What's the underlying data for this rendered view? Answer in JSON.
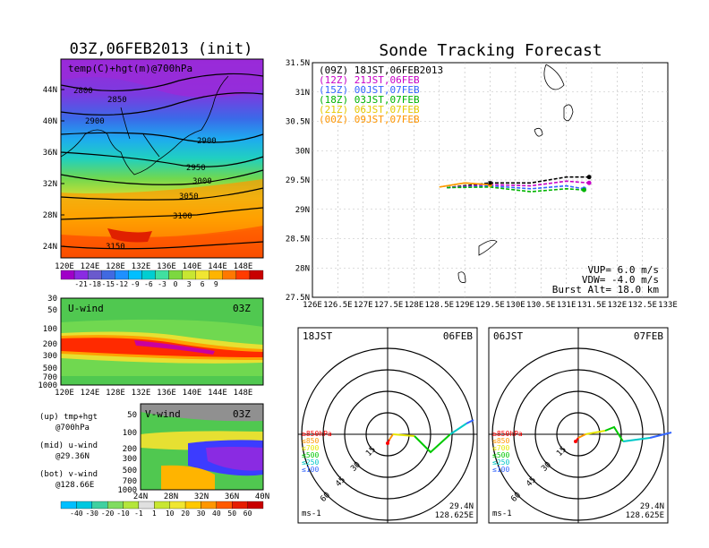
{
  "left_top": {
    "title": "03Z,06FEB2013 (init)",
    "label": "temp(C)+hgt(m)@700hPa",
    "lat_ticks": [
      "44N",
      "40N",
      "36N",
      "32N",
      "28N",
      "24N"
    ],
    "lon_ticks": [
      "120E",
      "124E",
      "128E",
      "132E",
      "136E",
      "140E",
      "144E",
      "148E"
    ],
    "contour_labels": [
      "2800",
      "2850",
      "2900",
      "2900",
      "2950",
      "3000",
      "3050",
      "3100",
      "3150"
    ],
    "colorbar_labels": [
      "-21",
      "-18",
      "-15",
      "-12",
      "-9",
      "-6",
      "-3",
      "0",
      "3",
      "6",
      "9"
    ],
    "colorbar_colors": [
      "#a000c8",
      "#8a2be2",
      "#6a5acd",
      "#4169e1",
      "#1e90ff",
      "#00bfff",
      "#00ced1",
      "#40e0a0",
      "#7cd840",
      "#c8e632",
      "#f0e632",
      "#ffb400",
      "#ff7800",
      "#ff3c00",
      "#c80000"
    ]
  },
  "u_wind": {
    "label": "U-wind",
    "time": "03Z",
    "p_ticks": [
      "30",
      "50",
      "100",
      "200",
      "300",
      "500",
      "700",
      "1000"
    ],
    "lon_ticks": [
      "120E",
      "124E",
      "128E",
      "132E",
      "136E",
      "140E",
      "144E",
      "148E"
    ]
  },
  "v_wind": {
    "label": "V-wind",
    "time": "03Z",
    "p_ticks": [
      "50",
      "100",
      "200",
      "300",
      "500",
      "700",
      "1000"
    ],
    "lat_ticks": [
      "24N",
      "28N",
      "32N",
      "36N",
      "40N"
    ],
    "colorbar_labels": [
      "-40",
      "-30",
      "-20",
      "-10",
      "-1",
      "1",
      "10",
      "20",
      "30",
      "40",
      "50",
      "60"
    ],
    "colorbar_colors": [
      "#00bfff",
      "#00c8e0",
      "#40d0a0",
      "#80dc60",
      "#b4e63c",
      "#e0e0e0",
      "#c8e632",
      "#f0e632",
      "#ffc800",
      "#ff9600",
      "#ff5a00",
      "#e61e00",
      "#c80000"
    ]
  },
  "notes": {
    "up": "(up) tmp+hgt",
    "up2": "@700hPa",
    "mid": "(mid) u-wind",
    "mid2": "@29.36N",
    "bot": "(bot) v-wind",
    "bot2": "@128.66E"
  },
  "sonde": {
    "title": "Sonde Tracking Forecast",
    "legend": [
      {
        "text": "(09Z)  18JST,06FEB2013",
        "color": "#000000"
      },
      {
        "text": "(12Z)  21JST,06FEB",
        "color": "#c800c8"
      },
      {
        "text": "(15Z)  00JST,07FEB",
        "color": "#3264ff"
      },
      {
        "text": "(18Z)  03JST,07FEB",
        "color": "#00b400"
      },
      {
        "text": "(21Z)  06JST,07FEB",
        "color": "#e6c800"
      },
      {
        "text": "(00Z)  09JST,07FEB",
        "color": "#ff9600"
      }
    ],
    "lat_ticks": [
      "31.5N",
      "31N",
      "30.5N",
      "30N",
      "29.5N",
      "29N",
      "28.5N",
      "28N",
      "27.5N"
    ],
    "lon_ticks": [
      "126E",
      "126.5E",
      "127E",
      "127.5E",
      "128E",
      "128.5E",
      "129E",
      "129.5E",
      "130E",
      "130.5E",
      "131E",
      "131.5E",
      "132E",
      "132.5E",
      "133E"
    ],
    "vup": "VUP=  6.0  m/s",
    "vdw": "VDW=  -4.0  m/s",
    "burst": "Burst Alt=  18.0  km"
  },
  "chart_data": [
    {
      "type": "line",
      "title": "Sonde Tracking Forecast",
      "xlim": [
        126,
        133
      ],
      "ylim": [
        27.5,
        31.5
      ],
      "series": [
        {
          "name": "(09Z) 18JST,06FEB2013",
          "x": [
            128.65,
            129.5,
            130.3,
            131.0,
            131.45
          ],
          "y": [
            29.37,
            29.45,
            29.45,
            29.55,
            29.55
          ]
        },
        {
          "name": "(12Z) 21JST,06FEB",
          "x": [
            128.65,
            129.5,
            130.3,
            131.0,
            131.45
          ],
          "y": [
            29.37,
            29.42,
            29.4,
            29.48,
            29.45
          ]
        },
        {
          "name": "(15Z) 00JST,07FEB",
          "x": [
            128.65,
            129.5,
            130.3,
            131.0,
            131.35
          ],
          "y": [
            29.37,
            29.4,
            29.35,
            29.4,
            29.35
          ]
        },
        {
          "name": "(18Z) 03JST,07FEB",
          "x": [
            128.65,
            129.5,
            130.3,
            131.0,
            131.35
          ],
          "y": [
            29.37,
            29.38,
            29.3,
            29.35,
            29.33
          ]
        },
        {
          "name": "(21Z) 06JST,07FEB",
          "x": [
            128.5,
            129.0,
            129.5
          ],
          "y": [
            29.38,
            29.45,
            29.42
          ]
        },
        {
          "name": "(00Z) 09JST,07FEB",
          "x": [
            128.5,
            129.0,
            129.5
          ],
          "y": [
            29.38,
            29.45,
            29.42
          ]
        }
      ]
    }
  ],
  "hodo_left": {
    "time": "18JST",
    "date": "06FEB",
    "rings": [
      "15",
      "30",
      "45",
      "60"
    ],
    "levels": [
      {
        "text": "≥850hPa",
        "color": "#ff0000"
      },
      {
        "text": "≤850",
        "color": "#ff9600"
      },
      {
        "text": "≤700",
        "color": "#e6e600"
      },
      {
        "text": "≤500",
        "color": "#00c800"
      },
      {
        "text": "≤250",
        "color": "#00c8c8"
      },
      {
        "text": "≤100",
        "color": "#3264ff"
      }
    ],
    "unit": "ms-1",
    "lat": "29.4N",
    "lon": "128.625E"
  },
  "hodo_right": {
    "time": "06JST",
    "date": "07FEB",
    "rings": [
      "15",
      "30",
      "45",
      "60"
    ],
    "levels": [
      {
        "text": "≥850hPa",
        "color": "#ff0000"
      },
      {
        "text": "≤850",
        "color": "#ff9600"
      },
      {
        "text": "≤700",
        "color": "#e6e600"
      },
      {
        "text": "≤500",
        "color": "#00c800"
      },
      {
        "text": "≤250",
        "color": "#00c8c8"
      },
      {
        "text": "≤100",
        "color": "#3264ff"
      }
    ],
    "unit": "ms-1",
    "lat": "29.4N",
    "lon": "128.625E"
  }
}
